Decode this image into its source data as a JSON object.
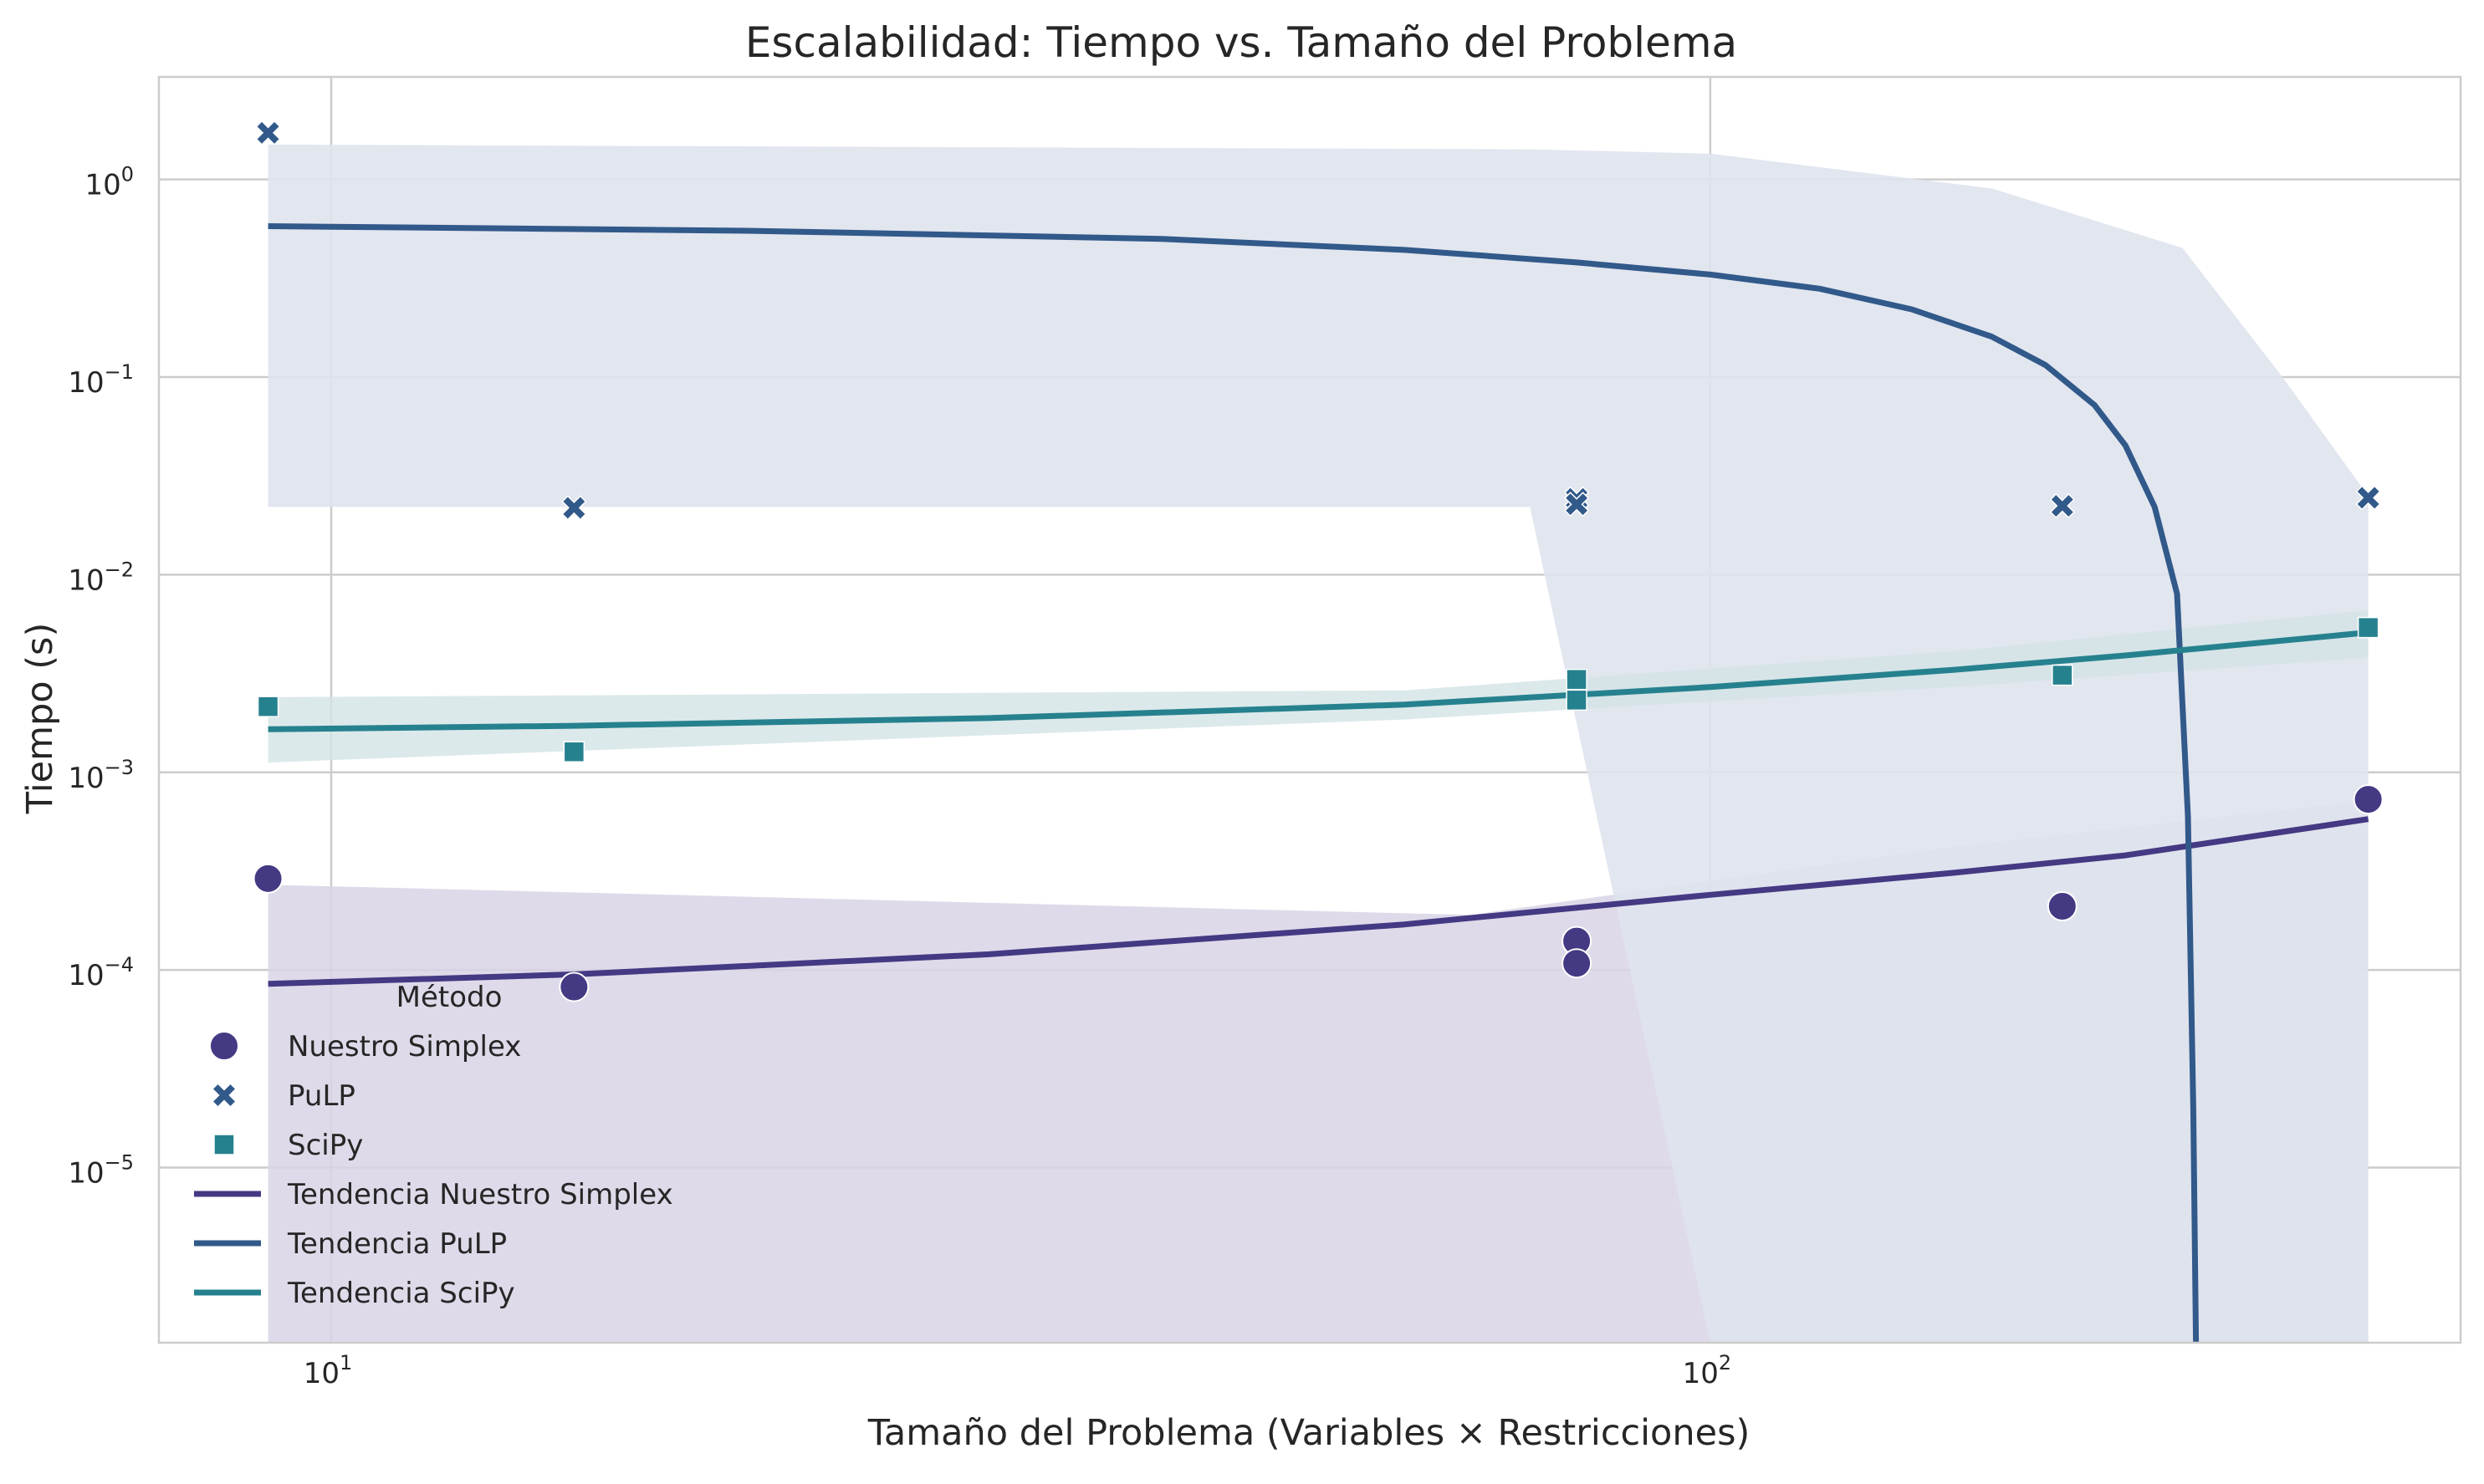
{
  "chart_data": {
    "type": "scatter",
    "title": "Escalabilidad: Tiempo vs. Tamaño del Problema",
    "xlabel": "Tamaño del Problema (Variables × Restricciones)",
    "ylabel": "Tiempo (s)",
    "xscale": "log",
    "yscale": "log",
    "xlim": [
      7.5,
      350
    ],
    "ylim": [
      1.3e-06,
      3.3
    ],
    "grid": true,
    "x_ticks": [
      {
        "value": 10,
        "base": "10",
        "exp": "1"
      },
      {
        "value": 100,
        "base": "10",
        "exp": "2"
      }
    ],
    "y_ticks": [
      {
        "value": 1,
        "base": "10",
        "exp": "0"
      },
      {
        "value": 0.1,
        "base": "10",
        "exp": "−1"
      },
      {
        "value": 0.01,
        "base": "10",
        "exp": "−2"
      },
      {
        "value": 0.001,
        "base": "10",
        "exp": "−3"
      },
      {
        "value": 0.0001,
        "base": "10",
        "exp": "−4"
      },
      {
        "value": 1e-05,
        "base": "10",
        "exp": "−5"
      }
    ],
    "legend": {
      "title": "Método",
      "placement": "lower-left",
      "entries": [
        "Nuestro Simplex",
        "PuLP",
        "SciPy",
        "Tendencia Nuestro Simplex",
        "Tendencia PuLP",
        "Tendencia SciPy"
      ]
    },
    "series": [
      {
        "name": "Nuestro Simplex",
        "marker": "circle",
        "color": "#443983",
        "x": [
          9,
          15,
          80,
          80,
          180,
          300
        ],
        "y": [
          0.00029,
          8.2e-05,
          0.00014,
          0.000108,
          0.00021,
          0.00073
        ]
      },
      {
        "name": "PuLP",
        "marker": "x",
        "color": "#31598a",
        "x": [
          9,
          15,
          80,
          80,
          180,
          300
        ],
        "y": [
          1.72,
          0.0218,
          0.0242,
          0.0227,
          0.0223,
          0.0245
        ]
      },
      {
        "name": "SciPy",
        "marker": "square",
        "color": "#26818e",
        "x": [
          9,
          15,
          80,
          80,
          180,
          300
        ],
        "y": [
          0.00215,
          0.00127,
          0.00295,
          0.00232,
          0.0031,
          0.0054
        ]
      }
    ],
    "trends": [
      {
        "name": "Tendencia Nuestro Simplex",
        "color": "#443983",
        "x": [
          9,
          15,
          30,
          60,
          100,
          150,
          200,
          300
        ],
        "y": [
          8.5e-05,
          9.5e-05,
          0.00012,
          0.00017,
          0.00024,
          0.00031,
          0.00038,
          0.00058
        ],
        "band_color": "#d9d3e5",
        "band": [
          {
            "x": 9,
            "lo": 1.3e-06,
            "hi": 0.00027
          },
          {
            "x": 67,
            "lo": 1.3e-06,
            "hi": 0.00019
          },
          {
            "x": 150,
            "lo": 1.3e-06,
            "hi": 0.00042
          },
          {
            "x": 300,
            "lo": 1.3e-06,
            "hi": 0.00072
          }
        ]
      },
      {
        "name": "Tendencia PuLP",
        "color": "#31598a",
        "x": [
          9,
          20,
          40,
          60,
          80,
          100,
          120,
          140,
          160,
          175,
          190,
          200,
          210,
          218,
          222,
          224,
          225
        ],
        "y": [
          0.58,
          0.55,
          0.5,
          0.44,
          0.38,
          0.33,
          0.28,
          0.22,
          0.16,
          0.115,
          0.072,
          0.045,
          0.022,
          0.008,
          0.0006,
          2e-05,
          1.3e-06
        ],
        "band_color": "#dfe3ed",
        "band": [
          {
            "x": 9,
            "lo": 0.022,
            "hi": 1.5
          },
          {
            "x": 74,
            "lo": 0.022,
            "hi": 1.42
          },
          {
            "x": 100,
            "lo": 1.3e-06,
            "hi": 1.35
          },
          {
            "x": 160,
            "lo": 1.3e-06,
            "hi": 0.9
          },
          {
            "x": 220,
            "lo": 1.3e-06,
            "hi": 0.45
          },
          {
            "x": 260,
            "lo": 1.3e-06,
            "hi": 0.1
          },
          {
            "x": 300,
            "lo": 1.3e-06,
            "hi": 0.025
          }
        ]
      },
      {
        "name": "Tendencia SciPy",
        "color": "#26818e",
        "x": [
          9,
          15,
          30,
          60,
          100,
          150,
          200,
          300
        ],
        "y": [
          0.00165,
          0.00172,
          0.00188,
          0.0022,
          0.0027,
          0.0033,
          0.0039,
          0.0051
        ],
        "band_color": "#d3e4e6",
        "band": [
          {
            "x": 9,
            "lo": 0.00112,
            "hi": 0.0024
          },
          {
            "x": 60,
            "lo": 0.00185,
            "hi": 0.0026
          },
          {
            "x": 150,
            "lo": 0.0027,
            "hi": 0.0041
          },
          {
            "x": 300,
            "lo": 0.0038,
            "hi": 0.0066
          }
        ]
      }
    ]
  }
}
